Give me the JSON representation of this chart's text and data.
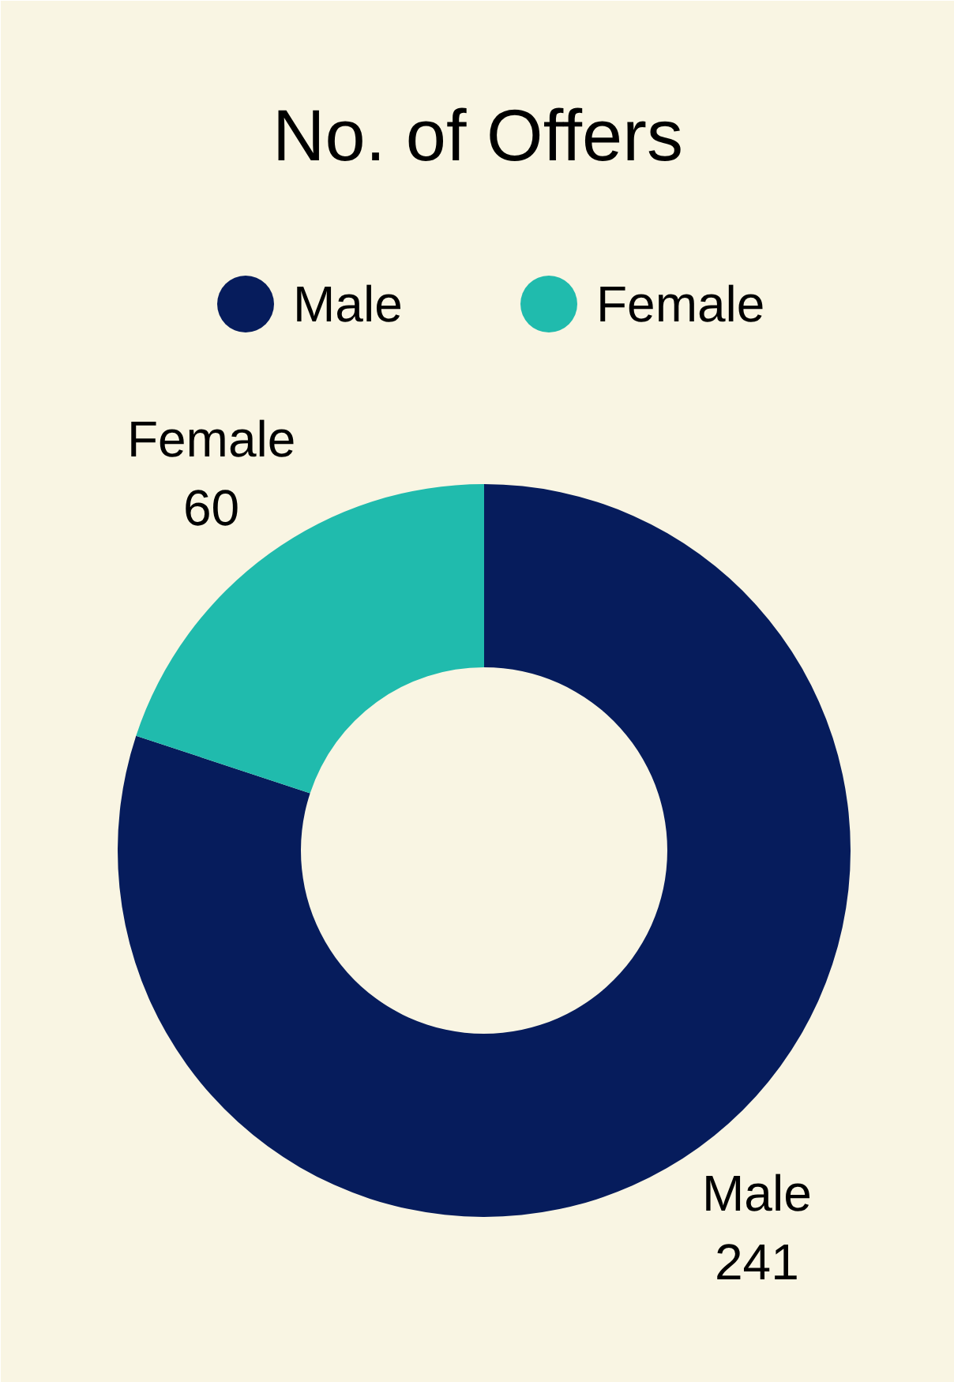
{
  "chart_data": {
    "type": "donut",
    "title": "No. of Offers",
    "categories": [
      "Male",
      "Female"
    ],
    "values": [
      241,
      60
    ],
    "colors": [
      "#061c5c",
      "#20bbad"
    ],
    "legend": "top",
    "data_labels": true
  }
}
